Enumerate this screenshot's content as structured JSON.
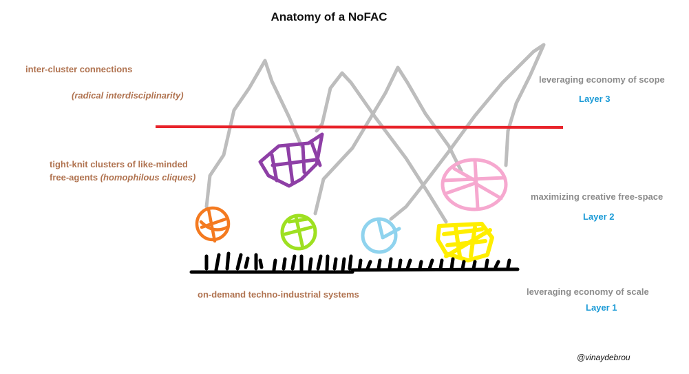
{
  "title": "Anatomy of a NoFAC",
  "labels": {
    "inter_cluster": "inter-cluster connections",
    "radical": "(radical interdisciplinarity)",
    "clusters_line1": "tight-knit clusters of like-minded",
    "clusters_line2a": "free-agents ",
    "clusters_line2b": "(homophilous cliques)",
    "on_demand": "on-demand techno-industrial systems",
    "scope": "leveraging economy of scope",
    "layer3": "Layer 3",
    "creative": "maximizing creative free-space",
    "layer2": "Layer 2",
    "scale": "leveraging economy of scale",
    "layer1": "Layer 1",
    "credit": "@vinaydebrou"
  },
  "colors": {
    "label_brown": "#b07350",
    "label_grey": "#8c8c8c",
    "layer_blue": "#1a9ad6",
    "divider_red": "#e8232a",
    "connection_grey": "#bdbdbd",
    "base_black": "#000000",
    "cluster_orange": "#f47a20",
    "cluster_purple": "#8e3fa6",
    "cluster_lime": "#9ee021",
    "cluster_lightblue": "#8fd3ee",
    "cluster_yellow": "#ffee00",
    "cluster_pink": "#f6a8cf"
  }
}
